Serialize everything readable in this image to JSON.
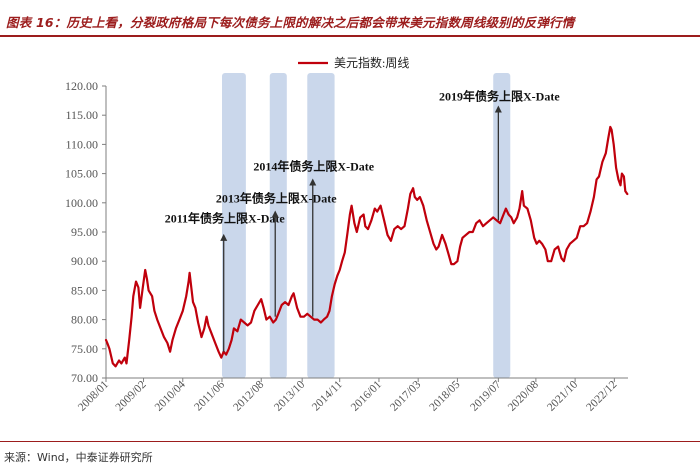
{
  "figure": {
    "title": "图表 16：历史上看，分裂政府格局下每次债务上限的解决之后都会带来美元指数周线级别的反弹行情",
    "source": "来源：Wind，中泰证券研究所"
  },
  "colors": {
    "title": "#9c1d1d",
    "line": "#c0000c",
    "band": "#c7d5ea",
    "arrow": "#333333",
    "tick": "#555555"
  },
  "chart_data": {
    "type": "line",
    "title": "",
    "xlabel": "",
    "ylabel": "",
    "legend": {
      "label": "美元指数:周线",
      "position": "top-center"
    },
    "ylim": [
      70,
      120
    ],
    "yticks": [
      "70.00",
      "75.00",
      "80.00",
      "85.00",
      "90.00",
      "95.00",
      "100.00",
      "105.00",
      "110.00",
      "115.00",
      "120.00"
    ],
    "xticks": [
      {
        "label": "2008/01",
        "t": 2008.0
      },
      {
        "label": "2009/02",
        "t": 2009.1
      },
      {
        "label": "2010/04",
        "t": 2010.25
      },
      {
        "label": "2011/06",
        "t": 2011.4
      },
      {
        "label": "2012/08",
        "t": 2012.55
      },
      {
        "label": "2013/10",
        "t": 2013.75
      },
      {
        "label": "2014/11",
        "t": 2014.85
      },
      {
        "label": "2016/01",
        "t": 2016.0
      },
      {
        "label": "2017/03",
        "t": 2017.15
      },
      {
        "label": "2018/05",
        "t": 2018.3
      },
      {
        "label": "2019/07",
        "t": 2019.5
      },
      {
        "label": "2020/08",
        "t": 2020.6
      },
      {
        "label": "2021/10",
        "t": 2021.75
      },
      {
        "label": "2022/12",
        "t": 2022.9
      }
    ],
    "xrange": [
      2008.0,
      2023.3
    ],
    "bands": [
      [
        2011.4,
        2012.1
      ],
      [
        2012.8,
        2013.3
      ],
      [
        2013.9,
        2014.7
      ],
      [
        2019.35,
        2019.85
      ]
    ],
    "annotations": [
      {
        "label": "2011年债务上限X-Date",
        "t": 2011.45,
        "y_start": 74.5,
        "y_end": 94.5,
        "label_y": 97.3
      },
      {
        "label": "2013年债务上限X-Date",
        "t": 2012.96,
        "y_start": 80.5,
        "y_end": 98.5,
        "label_y": 100.7
      },
      {
        "label": "2014年债务上限X-Date",
        "t": 2014.06,
        "y_start": 80.5,
        "y_end": 104.0,
        "label_y": 106.2
      },
      {
        "label": "2019年债务上限X-Date",
        "t": 2019.5,
        "y_start": 97.0,
        "y_end": 116.5,
        "label_y": 118.2
      }
    ],
    "series": [
      {
        "name": "美元指数:周线",
        "points": [
          [
            2008.0,
            76.5
          ],
          [
            2008.05,
            75.8
          ],
          [
            2008.1,
            75.0
          ],
          [
            2008.2,
            72.5
          ],
          [
            2008.28,
            72.0
          ],
          [
            2008.38,
            73.0
          ],
          [
            2008.45,
            72.5
          ],
          [
            2008.55,
            73.5
          ],
          [
            2008.6,
            72.5
          ],
          [
            2008.68,
            76.5
          ],
          [
            2008.75,
            80.5
          ],
          [
            2008.8,
            84.0
          ],
          [
            2008.88,
            86.5
          ],
          [
            2008.95,
            85.5
          ],
          [
            2009.0,
            82.0
          ],
          [
            2009.08,
            85.5
          ],
          [
            2009.15,
            88.5
          ],
          [
            2009.2,
            87.0
          ],
          [
            2009.25,
            85.0
          ],
          [
            2009.35,
            84.0
          ],
          [
            2009.42,
            81.5
          ],
          [
            2009.5,
            80.0
          ],
          [
            2009.6,
            78.5
          ],
          [
            2009.7,
            77.0
          ],
          [
            2009.8,
            76.0
          ],
          [
            2009.88,
            74.5
          ],
          [
            2009.95,
            76.5
          ],
          [
            2010.05,
            78.5
          ],
          [
            2010.15,
            80.0
          ],
          [
            2010.25,
            81.5
          ],
          [
            2010.35,
            84.0
          ],
          [
            2010.42,
            86.5
          ],
          [
            2010.45,
            88.0
          ],
          [
            2010.5,
            85.5
          ],
          [
            2010.55,
            83.0
          ],
          [
            2010.62,
            82.0
          ],
          [
            2010.7,
            79.5
          ],
          [
            2010.8,
            77.0
          ],
          [
            2010.88,
            78.5
          ],
          [
            2010.95,
            80.5
          ],
          [
            2011.0,
            79.0
          ],
          [
            2011.1,
            77.5
          ],
          [
            2011.2,
            76.0
          ],
          [
            2011.3,
            74.5
          ],
          [
            2011.38,
            73.5
          ],
          [
            2011.45,
            74.5
          ],
          [
            2011.52,
            74.0
          ],
          [
            2011.6,
            75.0
          ],
          [
            2011.68,
            76.5
          ],
          [
            2011.75,
            78.5
          ],
          [
            2011.85,
            78.0
          ],
          [
            2011.95,
            80.0
          ],
          [
            2012.05,
            79.5
          ],
          [
            2012.15,
            79.0
          ],
          [
            2012.25,
            79.5
          ],
          [
            2012.35,
            81.5
          ],
          [
            2012.45,
            82.5
          ],
          [
            2012.55,
            83.5
          ],
          [
            2012.62,
            82.0
          ],
          [
            2012.7,
            80.0
          ],
          [
            2012.8,
            80.5
          ],
          [
            2012.9,
            79.5
          ],
          [
            2012.98,
            80.0
          ],
          [
            2013.05,
            81.0
          ],
          [
            2013.15,
            82.5
          ],
          [
            2013.25,
            83.0
          ],
          [
            2013.35,
            82.5
          ],
          [
            2013.45,
            84.0
          ],
          [
            2013.5,
            84.5
          ],
          [
            2013.6,
            82.0
          ],
          [
            2013.7,
            80.5
          ],
          [
            2013.8,
            80.5
          ],
          [
            2013.9,
            81.0
          ],
          [
            2014.0,
            80.5
          ],
          [
            2014.1,
            80.0
          ],
          [
            2014.2,
            80.0
          ],
          [
            2014.3,
            79.5
          ],
          [
            2014.38,
            80.0
          ],
          [
            2014.48,
            80.5
          ],
          [
            2014.55,
            81.5
          ],
          [
            2014.62,
            84.0
          ],
          [
            2014.7,
            86.0
          ],
          [
            2014.78,
            87.5
          ],
          [
            2014.85,
            88.5
          ],
          [
            2014.92,
            90.0
          ],
          [
            2015.0,
            91.5
          ],
          [
            2015.08,
            95.0
          ],
          [
            2015.15,
            98.0
          ],
          [
            2015.2,
            99.5
          ],
          [
            2015.28,
            96.5
          ],
          [
            2015.35,
            95.0
          ],
          [
            2015.45,
            97.5
          ],
          [
            2015.55,
            98.0
          ],
          [
            2015.6,
            96.0
          ],
          [
            2015.68,
            95.5
          ],
          [
            2015.78,
            97.0
          ],
          [
            2015.88,
            99.0
          ],
          [
            2015.95,
            98.5
          ],
          [
            2016.05,
            99.5
          ],
          [
            2016.15,
            97.0
          ],
          [
            2016.25,
            94.5
          ],
          [
            2016.35,
            93.5
          ],
          [
            2016.45,
            95.5
          ],
          [
            2016.55,
            96.0
          ],
          [
            2016.65,
            95.5
          ],
          [
            2016.75,
            96.0
          ],
          [
            2016.85,
            99.0
          ],
          [
            2016.92,
            101.5
          ],
          [
            2017.0,
            102.5
          ],
          [
            2017.05,
            101.0
          ],
          [
            2017.12,
            100.5
          ],
          [
            2017.2,
            101.0
          ],
          [
            2017.3,
            99.5
          ],
          [
            2017.4,
            97.0
          ],
          [
            2017.5,
            95.0
          ],
          [
            2017.6,
            93.0
          ],
          [
            2017.68,
            92.0
          ],
          [
            2017.75,
            92.5
          ],
          [
            2017.85,
            94.5
          ],
          [
            2017.95,
            93.0
          ],
          [
            2018.05,
            91.0
          ],
          [
            2018.12,
            89.5
          ],
          [
            2018.2,
            89.5
          ],
          [
            2018.3,
            90.0
          ],
          [
            2018.38,
            92.5
          ],
          [
            2018.45,
            94.0
          ],
          [
            2018.55,
            94.5
          ],
          [
            2018.65,
            95.0
          ],
          [
            2018.75,
            95.0
          ],
          [
            2018.85,
            96.5
          ],
          [
            2018.95,
            97.0
          ],
          [
            2019.05,
            96.0
          ],
          [
            2019.15,
            96.5
          ],
          [
            2019.25,
            97.0
          ],
          [
            2019.35,
            97.5
          ],
          [
            2019.45,
            97.0
          ],
          [
            2019.55,
            96.5
          ],
          [
            2019.65,
            98.0
          ],
          [
            2019.72,
            99.0
          ],
          [
            2019.8,
            98.0
          ],
          [
            2019.88,
            97.5
          ],
          [
            2019.95,
            96.5
          ],
          [
            2020.05,
            97.5
          ],
          [
            2020.12,
            99.0
          ],
          [
            2020.2,
            102.0
          ],
          [
            2020.25,
            99.5
          ],
          [
            2020.35,
            99.0
          ],
          [
            2020.45,
            97.0
          ],
          [
            2020.55,
            94.0
          ],
          [
            2020.62,
            93.0
          ],
          [
            2020.7,
            93.5
          ],
          [
            2020.78,
            93.0
          ],
          [
            2020.88,
            92.0
          ],
          [
            2020.95,
            90.0
          ],
          [
            2021.05,
            90.0
          ],
          [
            2021.15,
            92.0
          ],
          [
            2021.25,
            92.5
          ],
          [
            2021.35,
            90.5
          ],
          [
            2021.42,
            90.0
          ],
          [
            2021.5,
            92.0
          ],
          [
            2021.6,
            93.0
          ],
          [
            2021.7,
            93.5
          ],
          [
            2021.8,
            94.0
          ],
          [
            2021.9,
            96.0
          ],
          [
            2022.0,
            96.0
          ],
          [
            2022.1,
            96.5
          ],
          [
            2022.2,
            98.5
          ],
          [
            2022.3,
            101.0
          ],
          [
            2022.38,
            104.0
          ],
          [
            2022.45,
            104.5
          ],
          [
            2022.55,
            107.0
          ],
          [
            2022.65,
            108.5
          ],
          [
            2022.72,
            111.0
          ],
          [
            2022.78,
            113.0
          ],
          [
            2022.82,
            112.5
          ],
          [
            2022.88,
            110.0
          ],
          [
            2022.95,
            106.0
          ],
          [
            2023.02,
            104.0
          ],
          [
            2023.08,
            103.0
          ],
          [
            2023.12,
            105.0
          ],
          [
            2023.18,
            104.5
          ],
          [
            2023.22,
            102.0
          ],
          [
            2023.28,
            101.5
          ]
        ]
      }
    ]
  }
}
